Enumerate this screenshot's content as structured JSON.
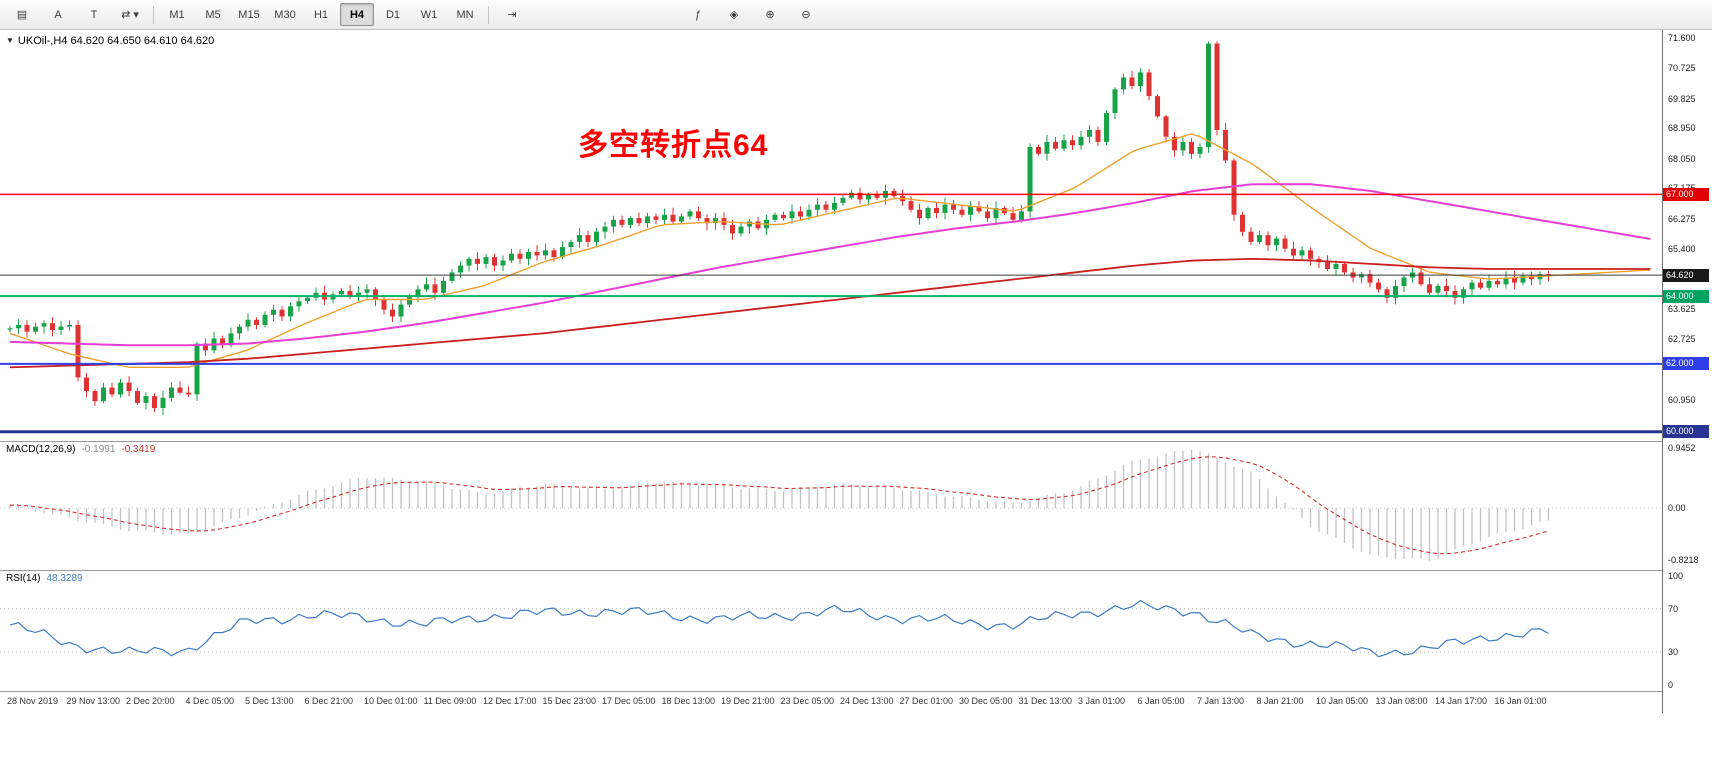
{
  "toolbar": {
    "left_buttons": [
      {
        "name": "chart-list-icon",
        "glyph": "▤"
      },
      {
        "name": "text-annotation-icon",
        "glyph": "A"
      },
      {
        "name": "text-label-icon",
        "glyph": "T"
      },
      {
        "name": "cursor-tools-icon",
        "glyph": "⇄ ▾"
      }
    ],
    "timeframes": [
      "M1",
      "M5",
      "M15",
      "M30",
      "H1",
      "H4",
      "D1",
      "W1",
      "MN"
    ],
    "active_timeframe": "H4",
    "right_buttons_1": [
      {
        "name": "chart-shift-icon",
        "glyph": "⇥"
      }
    ],
    "right_buttons_2": [
      {
        "name": "indicators-icon",
        "glyph": "ƒ"
      },
      {
        "name": "objects-list-icon",
        "glyph": "◈"
      },
      {
        "name": "zoom-in-icon",
        "glyph": "⊕"
      },
      {
        "name": "zoom-out-icon",
        "glyph": "⊖"
      }
    ]
  },
  "chart_header": {
    "dropdown_icon": "▼",
    "title": "UKOil-,H4 64.620 64.650 64.610 64.620"
  },
  "annotation": {
    "text": "多空转折点64",
    "color": "#FF0000"
  },
  "price_axis": {
    "labels": [
      {
        "text": "71.600",
        "value": 71.6
      },
      {
        "text": "70.725",
        "value": 70.725
      },
      {
        "text": "69.825",
        "value": 69.825
      },
      {
        "text": "68.950",
        "value": 68.95
      },
      {
        "text": "68.050",
        "value": 68.05
      },
      {
        "text": "67.175",
        "value": 67.175
      },
      {
        "text": "66.275",
        "value": 66.275
      },
      {
        "text": "65.400",
        "value": 65.4
      },
      {
        "text": "63.625",
        "value": 63.625
      },
      {
        "text": "62.725",
        "value": 62.725
      },
      {
        "text": "60.950",
        "value": 60.95
      }
    ],
    "badges": [
      {
        "text": "67.000",
        "value": 67.0,
        "color": "#e00000"
      },
      {
        "text": "64.620",
        "value": 64.62,
        "color": "#1a1a1a"
      },
      {
        "text": "64.000",
        "value": 64.0,
        "color": "#00a262"
      },
      {
        "text": "62.000",
        "value": 62.0,
        "color": "#2e3ee8"
      },
      {
        "text": "60.000",
        "value": 60.0,
        "color": "#283593"
      }
    ]
  },
  "indicators": {
    "macd": {
      "name": "MACD(12,26,9)",
      "value1": "-0.1991",
      "value2": "-0.3419",
      "axis": [
        {
          "text": "0.9452",
          "value": 0.9452
        },
        {
          "text": "0.00",
          "value": 0.0
        },
        {
          "text": "-0.8218",
          "value": -0.8218
        }
      ]
    },
    "rsi": {
      "name": "RSI(14)",
      "value": "48.3289",
      "axis": [
        {
          "text": "100",
          "value": 100
        },
        {
          "text": "70",
          "value": 70
        },
        {
          "text": "30",
          "value": 30
        },
        {
          "text": "0",
          "value": 0
        }
      ]
    }
  },
  "chart_data": [
    {
      "type": "candlestick",
      "symbol": "UKOil-",
      "timeframe": "H4",
      "open": "64.620",
      "high": "64.650",
      "low": "64.610",
      "close": "64.620",
      "ylim": [
        60.0,
        71.6
      ],
      "up_color": "#18a348",
      "down_color": "#e03232",
      "x_labels": [
        "28 Nov 2019",
        "29 Nov 13:00",
        "2 Dec 20:00",
        "4 Dec 05:00",
        "5 Dec 13:00",
        "6 Dec 21:00",
        "10 Dec 01:00",
        "11 Dec 09:00",
        "12 Dec 17:00",
        "15 Dec 23:00",
        "17 Dec 05:00",
        "18 Dec 13:00",
        "19 Dec 21:00",
        "23 Dec 05:00",
        "24 Dec 13:00",
        "27 Dec 01:00",
        "30 Dec 05:00",
        "31 Dec 13:00",
        "3 Jan 01:00",
        "6 Jan 05:00",
        "7 Jan 13:00",
        "8 Jan 21:00",
        "10 Jan 05:00",
        "13 Jan 08:00",
        "14 Jan 17:00",
        "16 Jan 01:00"
      ],
      "closes": [
        63.05,
        63.15,
        62.95,
        63.1,
        63.2,
        63.0,
        63.1,
        63.15,
        61.6,
        61.2,
        60.9,
        61.3,
        61.1,
        61.45,
        61.2,
        60.85,
        61.05,
        60.7,
        61.0,
        61.3,
        61.15,
        61.1,
        62.6,
        62.4,
        62.75,
        62.55,
        62.9,
        63.1,
        63.3,
        63.15,
        63.45,
        63.6,
        63.4,
        63.7,
        63.85,
        63.95,
        64.1,
        63.9,
        64.05,
        64.15,
        64.0,
        64.1,
        64.2,
        63.9,
        63.6,
        63.4,
        63.75,
        64.0,
        64.2,
        64.35,
        64.1,
        64.45,
        64.7,
        64.9,
        65.1,
        64.95,
        65.15,
        64.9,
        65.05,
        65.25,
        65.1,
        65.3,
        65.2,
        65.35,
        65.15,
        65.45,
        65.6,
        65.8,
        65.6,
        65.9,
        66.05,
        66.25,
        66.1,
        66.3,
        66.15,
        66.35,
        66.25,
        66.4,
        66.2,
        66.35,
        66.5,
        66.3,
        66.15,
        66.3,
        66.1,
        65.85,
        66.05,
        66.2,
        66.0,
        66.25,
        66.4,
        66.3,
        66.5,
        66.35,
        66.55,
        66.7,
        66.55,
        66.75,
        66.9,
        67.05,
        66.85,
        67.0,
        66.9,
        67.1,
        66.95,
        66.8,
        66.55,
        66.3,
        66.6,
        66.45,
        66.7,
        66.55,
        66.4,
        66.65,
        66.5,
        66.3,
        66.6,
        66.45,
        66.25,
        66.5,
        68.4,
        68.2,
        68.55,
        68.35,
        68.6,
        68.45,
        68.7,
        68.9,
        68.55,
        69.4,
        70.1,
        70.45,
        70.2,
        70.6,
        69.9,
        69.3,
        68.7,
        68.3,
        68.55,
        68.2,
        68.4,
        71.45,
        68.9,
        68.0,
        66.4,
        65.9,
        65.6,
        65.8,
        65.5,
        65.7,
        65.4,
        65.2,
        65.35,
        65.1,
        65.0,
        64.8,
        64.95,
        64.7,
        64.55,
        64.65,
        64.4,
        64.2,
        63.95,
        64.3,
        64.55,
        64.7,
        64.35,
        64.1,
        64.3,
        64.15,
        63.95,
        64.2,
        64.4,
        64.25,
        64.45,
        64.35,
        64.55,
        64.4,
        64.6,
        64.5,
        64.65,
        64.62
      ],
      "moving_averages": [
        {
          "name": "ma-fast-orange",
          "color": "#f0a030",
          "width": 1.4,
          "values": [
            62.9,
            62.3,
            61.9,
            61.9,
            62.4,
            63.2,
            63.9,
            63.9,
            64.3,
            65.0,
            65.5,
            66.1,
            66.2,
            66.1,
            66.5,
            66.9,
            66.7,
            66.5,
            67.2,
            68.3,
            68.8,
            67.9,
            66.6,
            65.4,
            64.7,
            64.5,
            64.6
          ]
        },
        {
          "name": "ma-mid-magenta",
          "color": "#e93ed3",
          "width": 2.0,
          "values": [
            62.65,
            62.6,
            62.55,
            62.55,
            62.6,
            62.75,
            62.95,
            63.2,
            63.5,
            63.8,
            64.15,
            64.5,
            64.85,
            65.15,
            65.45,
            65.75,
            66.0,
            66.2,
            66.45,
            66.75,
            67.1,
            67.3,
            67.3,
            67.1,
            66.8,
            66.5,
            66.2
          ]
        },
        {
          "name": "ma-slow-red",
          "color": "#cc1f1f",
          "width": 1.8,
          "values": [
            61.9,
            61.95,
            62.0,
            62.05,
            62.15,
            62.3,
            62.45,
            62.6,
            62.75,
            62.9,
            63.1,
            63.3,
            63.5,
            63.7,
            63.9,
            64.1,
            64.3,
            64.5,
            64.7,
            64.9,
            65.05,
            65.1,
            65.05,
            64.95,
            64.85,
            64.8,
            64.8
          ]
        }
      ],
      "hlines": [
        {
          "value": 67.0,
          "color": "#ff0000",
          "width": 1.5
        },
        {
          "value": 64.62,
          "color": "#3a3a3a",
          "width": 1
        },
        {
          "value": 64.0,
          "color": "#00b26b",
          "width": 2
        },
        {
          "value": 62.0,
          "color": "#2e3ee8",
          "width": 2
        },
        {
          "value": 60.0,
          "color": "#283593",
          "width": 3
        }
      ]
    },
    {
      "type": "bar",
      "name": "MACD(12,26,9)",
      "current": -0.1991,
      "signal_current": -0.3419,
      "ylim": [
        -0.8218,
        0.9452
      ],
      "histogram_color": "#c2c2c2",
      "signal_color": "#d43030",
      "key_values": [
        0.05,
        -0.15,
        -0.35,
        -0.42,
        -0.1,
        0.25,
        0.5,
        0.42,
        0.22,
        0.38,
        0.3,
        0.42,
        0.35,
        0.28,
        0.38,
        0.32,
        0.18,
        0.08,
        0.3,
        0.75,
        0.945,
        0.55,
        -0.3,
        -0.75,
        -0.82,
        -0.45,
        -0.2
      ]
    },
    {
      "type": "line",
      "name": "RSI(14)",
      "current": 48.3289,
      "ylim": [
        0,
        100
      ],
      "levels": [
        70,
        30
      ],
      "line_color": "#3e7bc4",
      "key_values": [
        55,
        38,
        29,
        33,
        58,
        64,
        62,
        55,
        63,
        66,
        68,
        65,
        60,
        64,
        68,
        62,
        58,
        55,
        66,
        72,
        68,
        45,
        38,
        30,
        33,
        45,
        48.3
      ]
    }
  ]
}
